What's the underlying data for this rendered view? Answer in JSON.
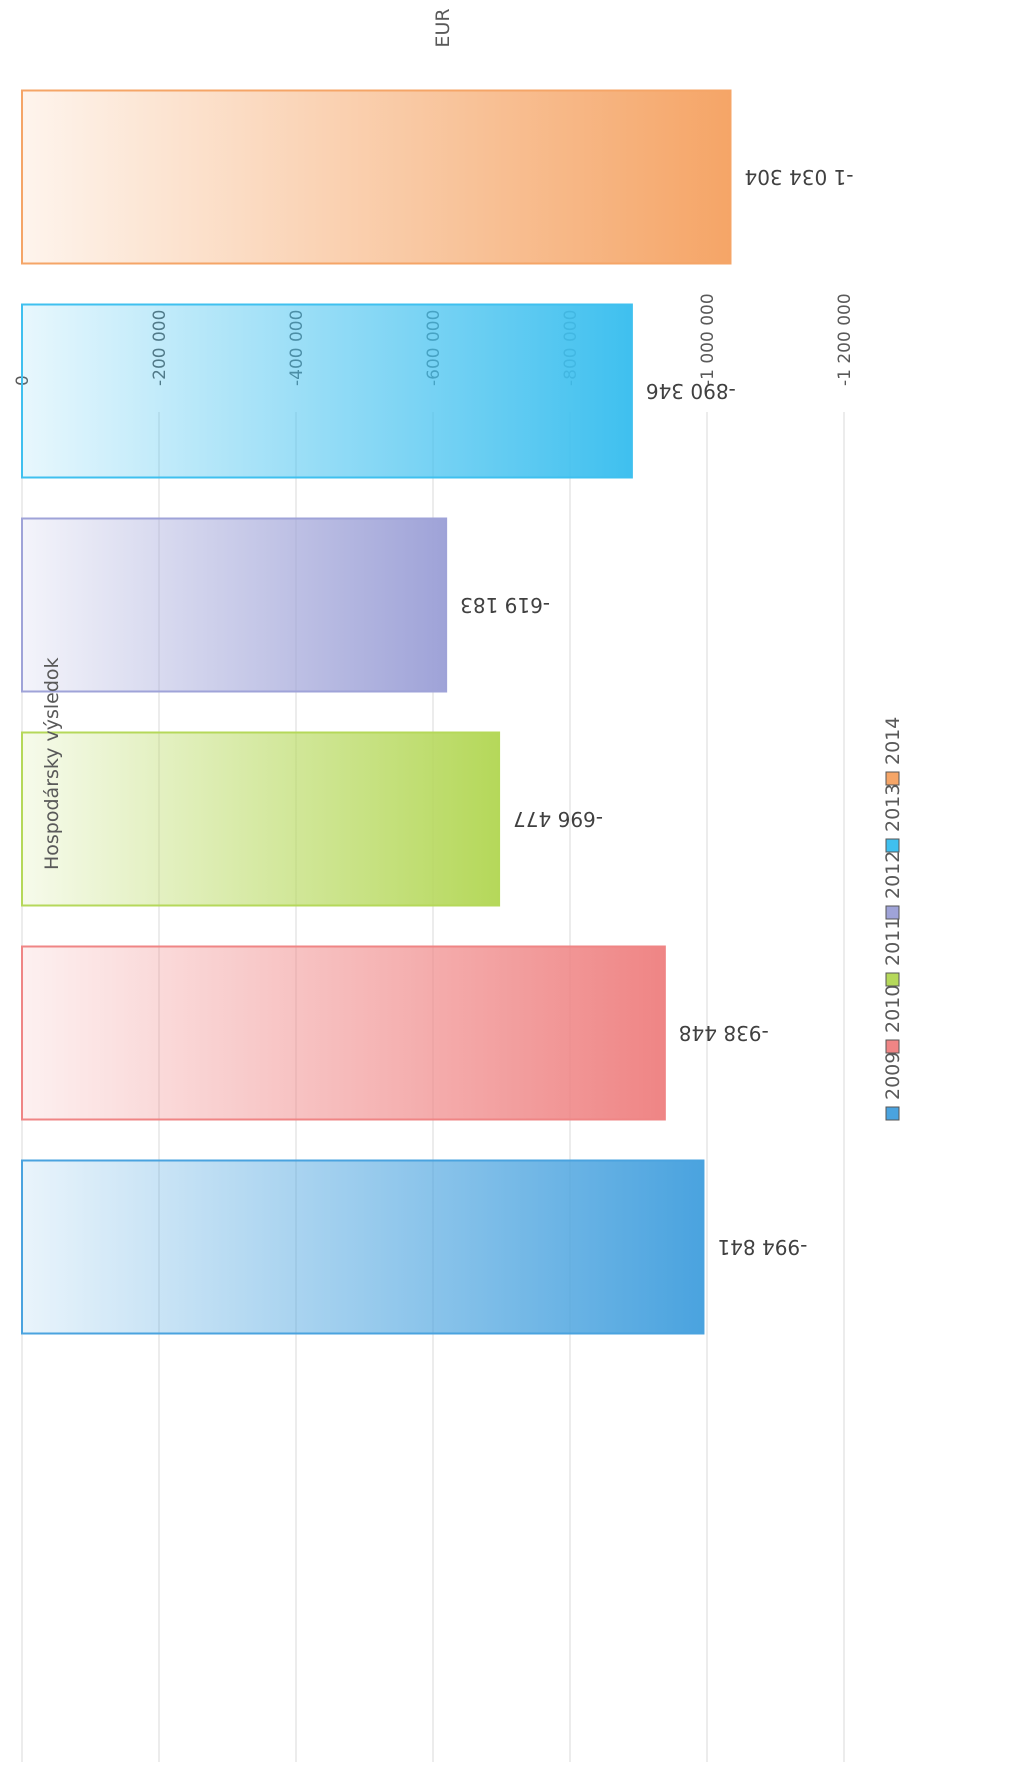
{
  "chart_data": {
    "type": "bar",
    "title": "Hospodársky výsledok",
    "ylabel": "EUR",
    "xlabel": "",
    "categories": [
      "2009",
      "2010",
      "2011",
      "2012",
      "2013",
      "2014"
    ],
    "values": [
      -994841,
      -938448,
      -696477,
      -619183,
      -890346,
      -1034304
    ],
    "data_labels": [
      "-994 841",
      "-938 448",
      "-696 477",
      "-619 183",
      "-890 346",
      "-1 034 304"
    ],
    "colors": [
      "#4aa3df",
      "#ef8585",
      "#b5d85a",
      "#9fa3d8",
      "#3fc0ef",
      "#f5a567"
    ],
    "yticks": [
      0,
      -200000,
      -400000,
      -600000,
      -800000,
      -1000000,
      -1200000
    ],
    "ytick_labels": [
      "0",
      "-200 000",
      "-400 000",
      "-600 000",
      "-800 000",
      "-1 000 000",
      "-1 200 000"
    ],
    "ylim": [
      -1200000,
      0
    ],
    "grid": true,
    "legend": {
      "position": "bottom",
      "entries": [
        "2009",
        "2010",
        "2011",
        "2012",
        "2013",
        "2014"
      ]
    },
    "orientation": "rotated-180"
  }
}
